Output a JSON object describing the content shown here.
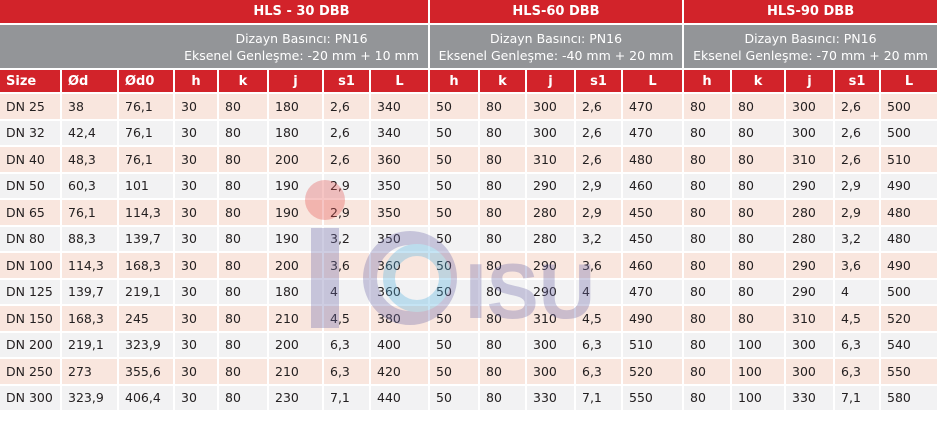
{
  "table": {
    "groups": [
      {
        "title": "HLS - 30 DBB",
        "pressure": "Dizayn Basıncı: PN16",
        "expansion": "Eksenel Genleşme: -20 mm + 10 mm"
      },
      {
        "title": "HLS-60 DBB",
        "pressure": "Dizayn Basıncı: PN16",
        "expansion": "Eksenel Genleşme: -40 mm + 20 mm"
      },
      {
        "title": "HLS-90 DBB",
        "pressure": "Dizayn Basıncı: PN16",
        "expansion": "Eksenel Genleşme: -70 mm + 20 mm"
      }
    ],
    "columns": [
      "Size",
      "Ød",
      "Ød0",
      "h",
      "k",
      "j",
      "s1",
      "L",
      "h",
      "k",
      "j",
      "s1",
      "L",
      "h",
      "k",
      "j",
      "s1",
      "L"
    ],
    "rows": [
      [
        "DN 25",
        "38",
        "76,1",
        "30",
        "80",
        "180",
        "2,6",
        "340",
        "50",
        "80",
        "300",
        "2,6",
        "470",
        "80",
        "80",
        "300",
        "2,6",
        "500"
      ],
      [
        "DN 32",
        "42,4",
        "76,1",
        "30",
        "80",
        "180",
        "2,6",
        "340",
        "50",
        "80",
        "300",
        "2,6",
        "470",
        "80",
        "80",
        "300",
        "2,6",
        "500"
      ],
      [
        "DN 40",
        "48,3",
        "76,1",
        "30",
        "80",
        "200",
        "2,6",
        "360",
        "50",
        "80",
        "310",
        "2,6",
        "480",
        "80",
        "80",
        "310",
        "2,6",
        "510"
      ],
      [
        "DN 50",
        "60,3",
        "101",
        "30",
        "80",
        "190",
        "2,9",
        "350",
        "50",
        "80",
        "290",
        "2,9",
        "460",
        "80",
        "80",
        "290",
        "2,9",
        "490"
      ],
      [
        "DN 65",
        "76,1",
        "114,3",
        "30",
        "80",
        "190",
        "2,9",
        "350",
        "50",
        "80",
        "280",
        "2,9",
        "450",
        "80",
        "80",
        "280",
        "2,9",
        "480"
      ],
      [
        "DN 80",
        "88,3",
        "139,7",
        "30",
        "80",
        "190",
        "3,2",
        "350",
        "50",
        "80",
        "280",
        "3,2",
        "450",
        "80",
        "80",
        "280",
        "3,2",
        "480"
      ],
      [
        "DN 100",
        "114,3",
        "168,3",
        "30",
        "80",
        "200",
        "3,6",
        "360",
        "50",
        "80",
        "290",
        "3,6",
        "460",
        "80",
        "80",
        "290",
        "3,6",
        "490"
      ],
      [
        "DN 125",
        "139,7",
        "219,1",
        "30",
        "80",
        "180",
        "4",
        "360",
        "50",
        "80",
        "290",
        "4",
        "470",
        "80",
        "80",
        "290",
        "4",
        "500"
      ],
      [
        "DN 150",
        "168,3",
        "245",
        "30",
        "80",
        "210",
        "4,5",
        "380",
        "50",
        "80",
        "310",
        "4,5",
        "490",
        "80",
        "80",
        "310",
        "4,5",
        "520"
      ],
      [
        "DN 200",
        "219,1",
        "323,9",
        "30",
        "80",
        "200",
        "6,3",
        "400",
        "50",
        "80",
        "300",
        "6,3",
        "510",
        "80",
        "100",
        "300",
        "6,3",
        "540"
      ],
      [
        "DN 250",
        "273",
        "355,6",
        "30",
        "80",
        "210",
        "6,3",
        "420",
        "50",
        "80",
        "300",
        "6,3",
        "520",
        "80",
        "100",
        "300",
        "6,3",
        "550"
      ],
      [
        "DN 300",
        "323,9",
        "406,4",
        "30",
        "80",
        "230",
        "7,1",
        "440",
        "50",
        "80",
        "330",
        "7,1",
        "550",
        "80",
        "100",
        "330",
        "7,1",
        "580"
      ]
    ]
  },
  "watermark": {
    "text": "ISU",
    "icon": "icosu-logo-icon"
  },
  "colors": {
    "header_red": "#d2232a",
    "subheader_gray": "#939598",
    "row_peach": "#f9e4db",
    "row_gray": "#f1f1f2",
    "text": "#231f20"
  }
}
